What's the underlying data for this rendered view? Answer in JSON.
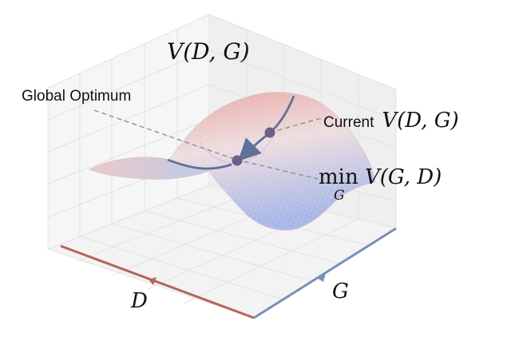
{
  "labels": {
    "v_title": "V(D, G)",
    "global_optimum": "Global Optimum",
    "current_prefix": "Current",
    "current_math": "V(D, G)",
    "min_text": "min",
    "min_sub": "G",
    "min_expr": "V(G, D)",
    "axis_d": "D",
    "axis_g": "G"
  },
  "colors": {
    "surface_red": "#e2a9a4",
    "surface_blue": "#a3b4e4",
    "trajectory": "#5e7196",
    "point_fill": "#6e5f86",
    "axis_d": "#b4655a",
    "axis_g": "#7a8fb6",
    "leader": "#8f8f8f",
    "grid": "#e0e0e0"
  }
}
